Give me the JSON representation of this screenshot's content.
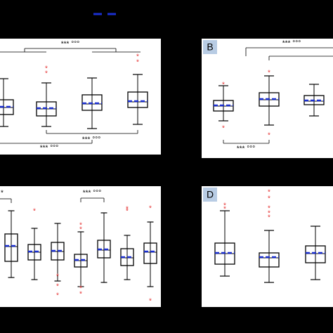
{
  "chart_data": [
    {
      "type": "box",
      "ylim": [
        0,
        165
      ],
      "boxes": {
        "whislo": [
          40,
          40,
          37,
          43
        ],
        "q1": [
          57,
          55,
          63,
          67
        ],
        "med": [
          67,
          65,
          72,
          75
        ],
        "mean": [
          68,
          66,
          73,
          76
        ],
        "q3": [
          78,
          75,
          85,
          89
        ],
        "whishi": [
          108,
          102,
          109,
          114
        ],
        "outliers": [
          [],
          [
            116,
            123
          ],
          [],
          [
            132,
            140
          ]
        ]
      },
      "annotations": [
        {
          "text": "*** °°°"
        },
        {
          "text": "*** °°°"
        },
        {
          "text": "*** °°°"
        }
      ]
    },
    {
      "type": "box",
      "label": "B",
      "ylim": [
        0,
        170
      ],
      "boxes": {
        "whislo": [
          53,
          47,
          60
        ],
        "q1": [
          67,
          74,
          76
        ],
        "med": [
          74,
          83,
          81
        ],
        "mean": [
          75,
          84,
          82
        ],
        "q3": [
          82,
          93,
          89
        ],
        "whishi": [
          103,
          117,
          105
        ],
        "outliers": [
          [
            105,
            43
          ],
          [
            122,
            33
          ],
          []
        ]
      },
      "annotations": [
        {
          "text": "*** °°°"
        },
        {
          "text": "*** °°°"
        }
      ]
    },
    {
      "type": "box",
      "ylim": [
        0,
        172
      ],
      "boxes": {
        "whislo": [
          42,
          39,
          37,
          29,
          35,
          39,
          29
        ],
        "q1": [
          65,
          67,
          67,
          57,
          70,
          59,
          62
        ],
        "med": [
          86,
          78,
          79,
          66,
          81,
          70,
          78
        ],
        "mean": [
          87,
          79,
          80,
          67,
          82,
          71,
          79
        ],
        "q3": [
          104,
          89,
          92,
          75,
          95,
          83,
          91
        ],
        "whishi": [
          137,
          112,
          119,
          107,
          134,
          102,
          121
        ],
        "outliers": [
          [],
          [
            137
          ],
          [
            44,
            30,
            17
          ],
          [
            117,
            111,
            27,
            19
          ],
          [],
          [
            140,
            137
          ],
          [
            141,
            9
          ]
        ]
      },
      "annotations": [
        {
          "text": "*** °°°"
        },
        {
          "text": "*"
        }
      ]
    },
    {
      "type": "box",
      "label": "D",
      "ylim": [
        0,
        172
      ],
      "boxes": {
        "whislo": [
          44,
          35,
          39
        ],
        "q1": [
          61,
          57,
          63
        ],
        "med": [
          76,
          70,
          76
        ],
        "mean": [
          77,
          71,
          77
        ],
        "q3": [
          91,
          77,
          87
        ],
        "whishi": [
          137,
          109,
          115
        ],
        "outliers": [
          [
            145,
            140
          ],
          [
            164,
            155,
            141,
            134,
            128
          ],
          []
        ]
      },
      "annotations": []
    }
  ]
}
